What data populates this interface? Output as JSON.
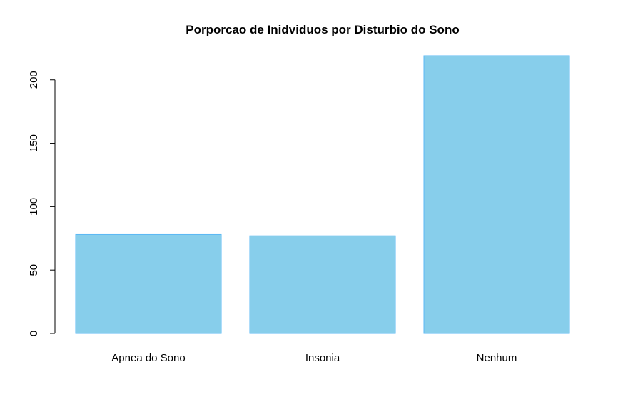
{
  "chart_data": {
    "type": "bar",
    "title": "Porporcao de Inidviduos por Disturbio do Sono",
    "xlabel": "",
    "ylabel": "",
    "categories": [
      "Apnea do Sono",
      "Insonia",
      "Nenhum"
    ],
    "values": [
      78,
      77,
      219
    ],
    "ylim": [
      0,
      219
    ],
    "yticks": [
      0,
      50,
      100,
      150,
      200
    ],
    "bar_color": "#87CEEB",
    "bar_border_color": "#5BB8F5",
    "grid": false,
    "legend": "none"
  }
}
